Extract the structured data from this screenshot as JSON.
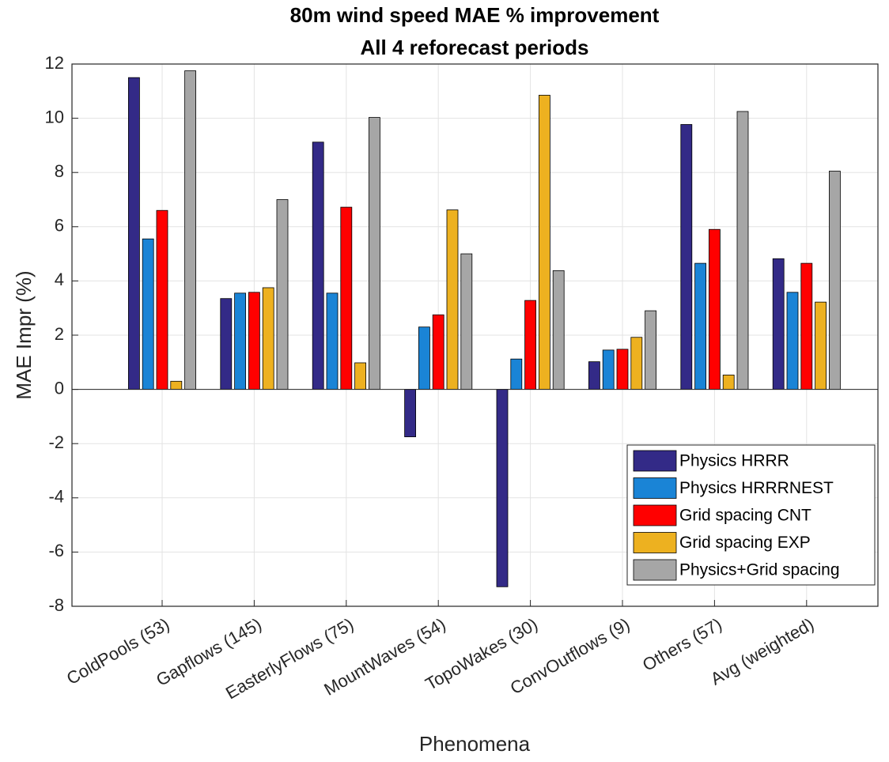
{
  "chart_data": {
    "type": "bar",
    "title": "80m wind speed MAE % improvement",
    "subtitle": "All 4 reforecast periods",
    "xlabel": "Phenomena",
    "ylabel": "MAE Impr (%)",
    "categories": [
      "ColdPools (53)",
      "Gapflows (145)",
      "EasterlyFlows (75)",
      "MountWaves (54)",
      "TopoWakes (30)",
      "ConvOutflows (9)",
      "Others (57)",
      "Avg (weighted)"
    ],
    "series": [
      {
        "name": "Physics HRRR",
        "color": "#332a87",
        "values": [
          11.5,
          3.35,
          9.12,
          -1.75,
          -7.28,
          1.02,
          9.77,
          4.82
        ]
      },
      {
        "name": "Physics HRRRNEST",
        "color": "#1a84d6",
        "values": [
          5.55,
          3.55,
          3.55,
          2.3,
          1.12,
          1.45,
          4.65,
          3.58
        ]
      },
      {
        "name": "Grid spacing CNT",
        "color": "#ff0000",
        "values": [
          6.6,
          3.58,
          6.72,
          2.75,
          3.28,
          1.48,
          5.9,
          4.65
        ]
      },
      {
        "name": "Grid spacing EXP",
        "color": "#edb120",
        "values": [
          0.3,
          3.75,
          0.98,
          6.62,
          10.85,
          1.92,
          0.53,
          3.22
        ]
      },
      {
        "name": "Physics+Grid spacing",
        "color": "#a6a6a6",
        "values": [
          11.75,
          7.0,
          10.03,
          5.0,
          4.38,
          2.9,
          10.25,
          8.05
        ]
      }
    ],
    "ylim": [
      -8,
      12
    ],
    "yticks": [
      -8,
      -6,
      -4,
      -2,
      0,
      2,
      4,
      6,
      8,
      10,
      12
    ],
    "grid": true,
    "legend": "southeast"
  }
}
